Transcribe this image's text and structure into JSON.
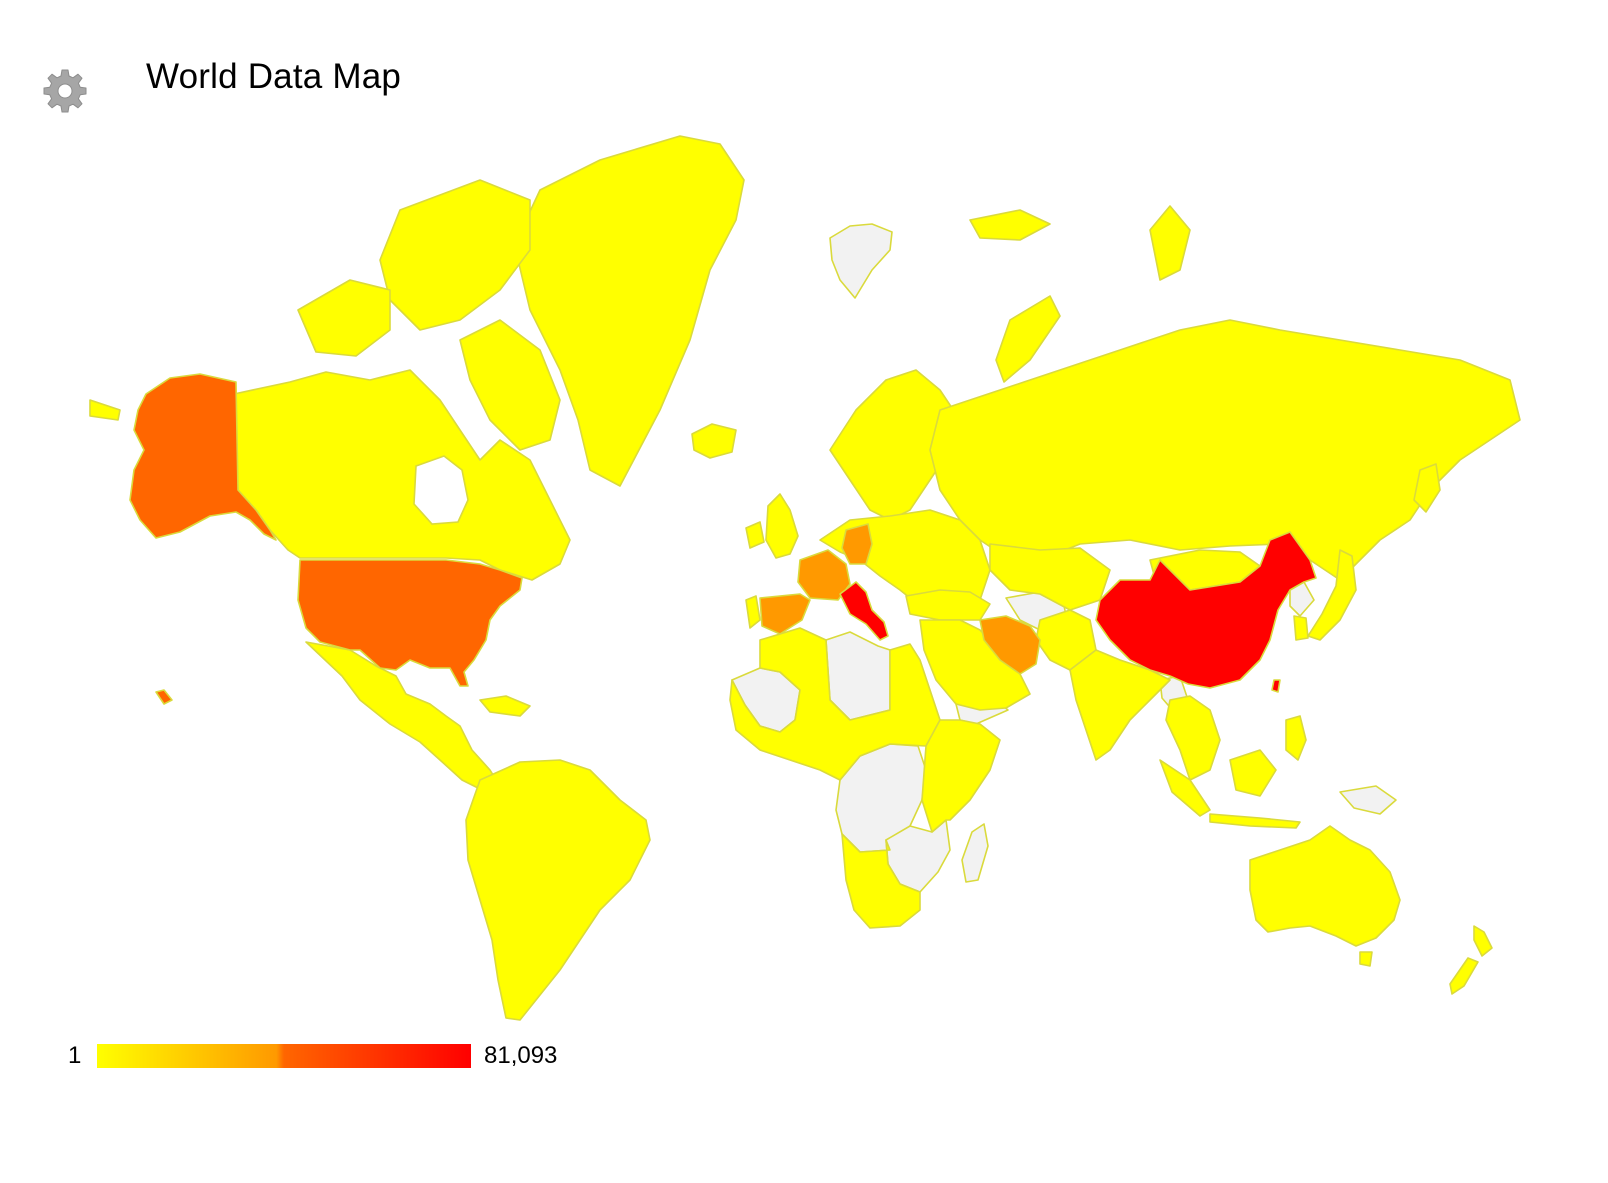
{
  "header": {
    "title": "World Data Map",
    "settings_icon": "gear-icon"
  },
  "colors": {
    "low": "#ffff00",
    "mid": "#ff9900",
    "midhigh": "#ff6600",
    "high": "#ff0000",
    "no_data": "#f2f2f2",
    "border": "#dada3c"
  },
  "legend": {
    "min_label": "1",
    "max_label": "81,093",
    "min_value": 1,
    "max_value": 81093
  },
  "map": {
    "highlighted_regions": [
      {
        "name": "China",
        "level": "high"
      },
      {
        "name": "Italy",
        "level": "high"
      },
      {
        "name": "United States",
        "level": "midhigh"
      },
      {
        "name": "Alaska",
        "level": "midhigh"
      },
      {
        "name": "Hawaii",
        "level": "midhigh"
      },
      {
        "name": "Germany",
        "level": "mid"
      },
      {
        "name": "France",
        "level": "mid"
      },
      {
        "name": "Spain",
        "level": "mid"
      },
      {
        "name": "Iran",
        "level": "mid"
      }
    ]
  }
}
